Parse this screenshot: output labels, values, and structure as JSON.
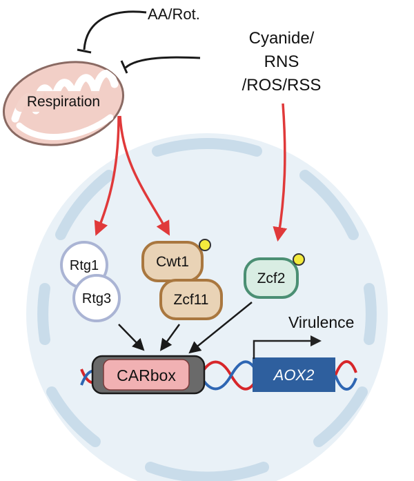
{
  "labels": {
    "inhibitor_top": "AA/Rot.",
    "inhibitor_right_line1": "Cyanide/",
    "inhibitor_right_line2": "RNS",
    "inhibitor_right_line3": "/ROS/RSS",
    "organelle": "Respiration",
    "rtg1": "Rtg1",
    "rtg3": "Rtg3",
    "cwt1": "Cwt1",
    "zcf11": "Zcf11",
    "zcf2": "Zcf2",
    "promoter_element": "CARbox",
    "gene": "AOX2",
    "output": "Virulence"
  },
  "colors": {
    "activation_arrow": "#e0393a",
    "inhibition_line": "#1a1a1a",
    "nucleus_fill": "#e9f1f7",
    "nucleus_envelope": "#c9dcea",
    "mito_fill": "#f2cfc7",
    "rtg_outline": "#aab4d4",
    "cwt_zcf11_fill": "#e9d3b6",
    "cwt_zcf11_outline": "#a9773f",
    "zcf2_fill": "#d9ede3",
    "zcf2_outline": "#4b8f73",
    "phospho_dot": "#f3ea3c",
    "carbox_fill": "#f1b1b3",
    "aox2_fill": "#2e5f9e",
    "dna_red": "#d7262a",
    "dna_blue": "#2e66b3"
  },
  "icons": {
    "phosphorylation": "phospho-dot-icon",
    "transcription_start": "bent-arrow-icon"
  }
}
